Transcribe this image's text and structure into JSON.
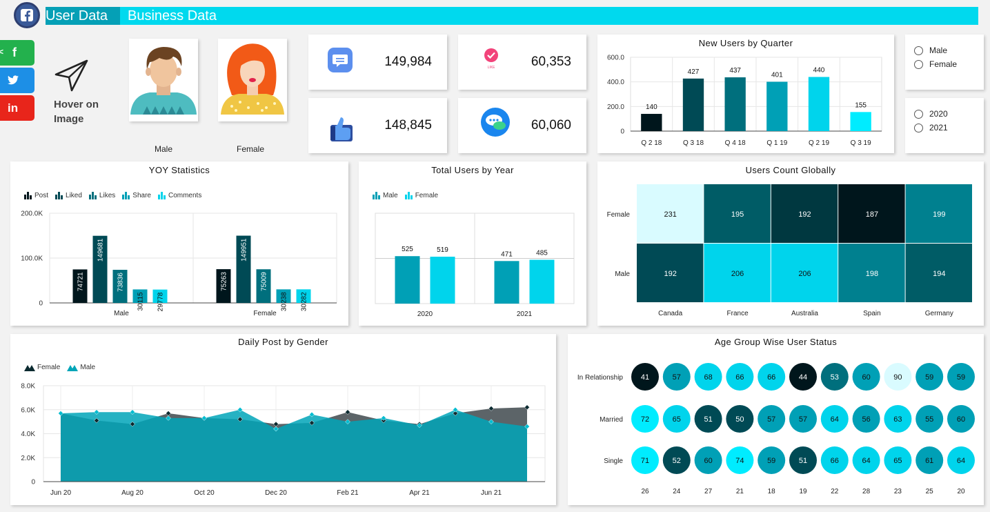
{
  "header": {
    "tab_user": "User Data",
    "tab_business": "Business Data",
    "colors": {
      "bar": "#00d9ee",
      "tab_active": "#05a0b6"
    }
  },
  "social": [
    {
      "name": "share-icon",
      "color": "#23b14d"
    },
    {
      "name": "twitter-icon",
      "color": "#1d8fe6"
    },
    {
      "name": "linkedin-icon",
      "color": "#e8251b",
      "label": "in"
    }
  ],
  "hover": {
    "line1": "Hover on",
    "line2": "Image"
  },
  "avatars": {
    "male_label": "Male",
    "female_label": "Female"
  },
  "kpis": {
    "posts": "149,984",
    "likes": "60,353",
    "liked": "148,845",
    "comments": "60,060"
  },
  "filters": {
    "gender": [
      "Male",
      "Female"
    ],
    "years": [
      "2020",
      "2021"
    ]
  },
  "palette": [
    "#00161c",
    "#004a55",
    "#006f7d",
    "#00a0b6",
    "#00d4ec",
    "#00ecff",
    "#d9fbff"
  ],
  "chart_data": [
    {
      "id": "new_users",
      "type": "bar",
      "title": "New Users by Quarter",
      "categories": [
        "Q 2 18",
        "Q 3 18",
        "Q 4 18",
        "Q 1 19",
        "Q 2 19",
        "Q 3 19"
      ],
      "values": [
        140,
        427,
        437,
        401,
        440,
        155
      ],
      "colors": [
        "#00161c",
        "#004a55",
        "#006f7d",
        "#00a0b6",
        "#00d4ec",
        "#00ecff"
      ],
      "yticks": [
        "0",
        "200.0",
        "400.0",
        "600.0"
      ],
      "ylim": [
        0,
        600
      ],
      "grid": true
    },
    {
      "id": "yoy",
      "type": "bar",
      "title": "YOY Statistics",
      "categories": [
        "Male",
        "Female"
      ],
      "series": [
        {
          "name": "Post",
          "values": [
            74721,
            75263
          ],
          "color": "#00161c"
        },
        {
          "name": "Liked",
          "values": [
            149681,
            149951
          ],
          "color": "#004a55"
        },
        {
          "name": "Likes",
          "values": [
            73836,
            75009
          ],
          "color": "#006f7d"
        },
        {
          "name": "Share",
          "values": [
            30115,
            30238
          ],
          "color": "#00a0b6"
        },
        {
          "name": "Comments",
          "values": [
            29778,
            30282
          ],
          "color": "#00d4ec"
        }
      ],
      "yticks": [
        "0",
        "100.0K",
        "200.0K"
      ],
      "ylim": [
        0,
        200000
      ],
      "legend": "top-left"
    },
    {
      "id": "total_users",
      "type": "bar",
      "title": "Total Users by Year",
      "categories": [
        "2020",
        "2021"
      ],
      "series": [
        {
          "name": "Male",
          "values": [
            525,
            471
          ],
          "color": "#00a0b6"
        },
        {
          "name": "Female",
          "values": [
            519,
            485
          ],
          "color": "#00d4ec"
        }
      ],
      "ylim": [
        0,
        1000
      ],
      "legend": "top-left"
    },
    {
      "id": "users_global",
      "type": "heatmap",
      "title": "Users Count Globally",
      "rows": [
        "Female",
        "Male"
      ],
      "columns": [
        "Canada",
        "France",
        "Australia",
        "Spain",
        "Germany"
      ],
      "values": [
        [
          231,
          195,
          192,
          187,
          199
        ],
        [
          192,
          206,
          206,
          198,
          194
        ]
      ],
      "colors": [
        [
          "#d9fbff",
          "#005c66",
          "#003840",
          "#00161c",
          "#00808f"
        ],
        [
          "#004a55",
          "#00d4ec",
          "#00d4ec",
          "#00808f",
          "#005c66"
        ]
      ]
    },
    {
      "id": "daily_post",
      "type": "area",
      "title": "Daily Post by Gender",
      "x": [
        "Jun 20",
        "Jul 20",
        "Aug 20",
        "Sep 20",
        "Oct 20",
        "Nov 20",
        "Dec 20",
        "Jan 21",
        "Feb 21",
        "Mar 21",
        "Apr 21",
        "May 21",
        "Jun 21",
        "Jul 21"
      ],
      "xticks": [
        "Jun 20",
        "Aug 20",
        "Oct 20",
        "Dec 20",
        "Feb 21",
        "Apr 21",
        "Jun 21"
      ],
      "series": [
        {
          "name": "Female",
          "values": [
            5700,
            5100,
            4800,
            5700,
            5300,
            5200,
            4800,
            4900,
            5800,
            5100,
            4800,
            5700,
            6100,
            6200
          ],
          "color": "#5c6468"
        },
        {
          "name": "Male",
          "values": [
            5700,
            5800,
            5800,
            5300,
            5300,
            6000,
            4400,
            5600,
            5000,
            5300,
            4700,
            6000,
            5000,
            4600
          ],
          "color": "#00a5b8"
        }
      ],
      "yticks": [
        "0",
        "2.0K",
        "4.0K",
        "6.0K",
        "8.0K"
      ],
      "ylim": [
        0,
        8000
      ],
      "legend": "top-left"
    },
    {
      "id": "age_group",
      "type": "table",
      "title": "Age Group Wise User Status",
      "rows": [
        "In Relationship",
        "Married",
        "Single"
      ],
      "columns": [
        "26",
        "24",
        "27",
        "21",
        "18",
        "19",
        "22",
        "28",
        "23",
        "25",
        "20"
      ],
      "values": [
        [
          41,
          57,
          68,
          66,
          66,
          44,
          53,
          60,
          90,
          59,
          59
        ],
        [
          72,
          65,
          51,
          50,
          57,
          57,
          64,
          56,
          63,
          55,
          60
        ],
        [
          71,
          52,
          60,
          74,
          59,
          51,
          66,
          64,
          65,
          61,
          64
        ]
      ]
    }
  ]
}
